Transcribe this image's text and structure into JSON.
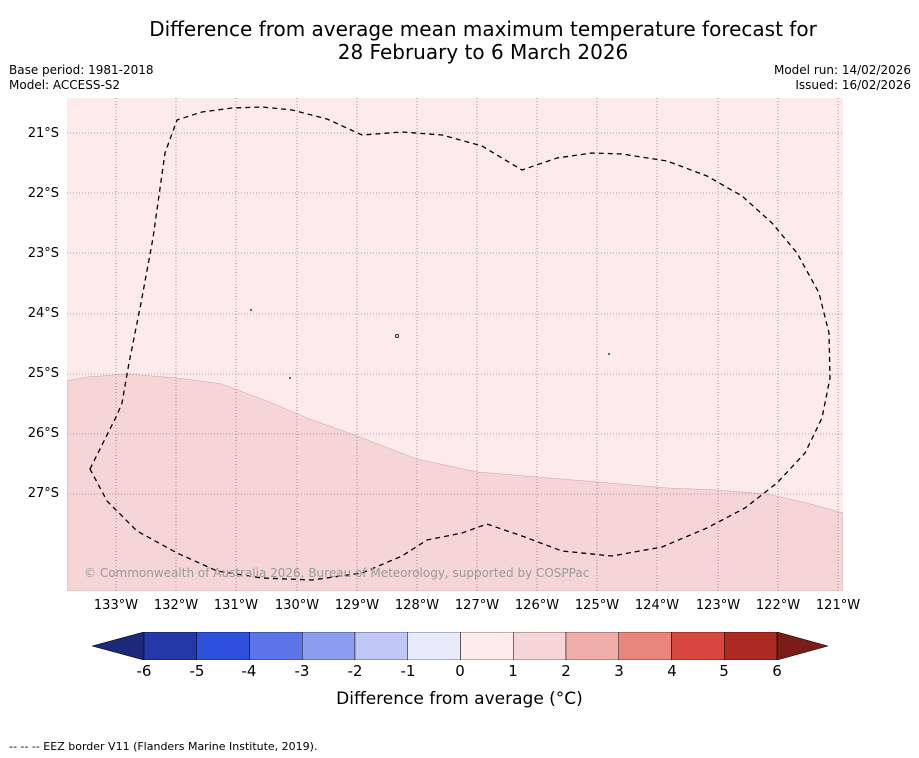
{
  "title": {
    "line1": "Difference from average mean maximum temperature forecast for",
    "line2": "28 February to 6 March 2026"
  },
  "meta": {
    "base_period": "Base period: 1981-2018",
    "model": "Model: ACCESS-S2",
    "model_run": "Model run: 14/02/2026",
    "issued": "Issued: 16/02/2026"
  },
  "map": {
    "lat_labels": [
      "21°S",
      "22°S",
      "23°S",
      "24°S",
      "25°S",
      "26°S",
      "27°S"
    ],
    "lon_labels": [
      "133°W",
      "132°W",
      "131°W",
      "130°W",
      "129°W",
      "128°W",
      "127°W",
      "126°W",
      "125°W",
      "124°W",
      "123°W",
      "122°W",
      "121°W"
    ],
    "copyright": "© Commonwealth of Australia 2026, Bureau of Meteorology, supported by COSPPac",
    "colors": {
      "anomaly_0_to_1": "#fcebea",
      "anomaly_1_to_2": "#f5d5d5",
      "eez_border": "#000000"
    }
  },
  "colorbar": {
    "ticks": [
      "-6",
      "-5",
      "-4",
      "-3",
      "-2",
      "-1",
      "0",
      "1",
      "2",
      "3",
      "4",
      "5",
      "6"
    ],
    "colors": [
      "#2438a8",
      "#2f50dc",
      "#5c74e6",
      "#8c9cee",
      "#c1c8f6",
      "#e8ebfb",
      "#fcebea",
      "#f5d5d5",
      "#efaea9",
      "#e8857d",
      "#d84640",
      "#ac2a22"
    ],
    "under_color": "#1b2a78",
    "over_color": "#7b1d16",
    "label": "Difference from average (°C)"
  },
  "footer": "--  --  -- EEZ border V11 (Flanders Marine Institute, 2019)."
}
